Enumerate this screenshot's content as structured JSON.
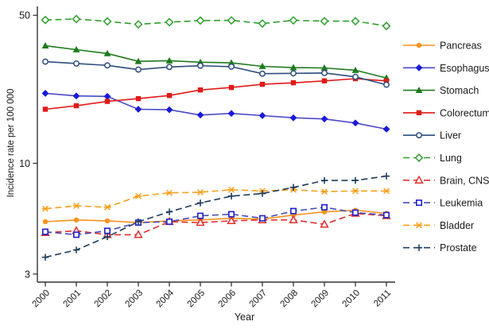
{
  "chart_data": {
    "type": "line",
    "title": "",
    "xlabel": "Year",
    "ylabel": "Incidence rate per 100 000",
    "yscale": "log",
    "ylim": [
      2.9,
      52
    ],
    "y_ticks": [
      "50",
      "10",
      "3"
    ],
    "x": [
      2000,
      2001,
      2002,
      2003,
      2004,
      2005,
      2006,
      2007,
      2008,
      2009,
      2010,
      2011
    ],
    "x_tick_labels": [
      "2000",
      "2001",
      "2002",
      "2003",
      "2004",
      "2005",
      "2006",
      "2007",
      "2008",
      "2009",
      "2010",
      "2011"
    ],
    "grid": false,
    "legend_position": "right",
    "series": [
      {
        "name": "Pancreas",
        "color": "#F6921E",
        "line": "solid",
        "marker": "circle",
        "values": [
          5.3,
          5.4,
          5.35,
          5.25,
          5.35,
          5.4,
          5.5,
          5.45,
          5.7,
          5.9,
          6.0,
          5.8
        ]
      },
      {
        "name": "Esophagus",
        "color": "#4A4AC8",
        "marker_color": "#1A1AD8",
        "line": "solid",
        "marker": "diamond",
        "values": [
          21.4,
          20.8,
          20.7,
          18.0,
          17.9,
          16.9,
          17.2,
          16.8,
          16.4,
          16.2,
          15.5,
          14.5
        ]
      },
      {
        "name": "Stomach",
        "color": "#1E7B1E",
        "line": "solid",
        "marker": "triangle",
        "values": [
          35.9,
          34.4,
          33.0,
          30.3,
          30.5,
          30.0,
          29.8,
          28.7,
          28.3,
          28.2,
          27.5,
          25.3
        ]
      },
      {
        "name": "Colorectum",
        "color": "#E01A1A",
        "line": "solid",
        "marker": "square",
        "values": [
          18.0,
          18.7,
          19.6,
          20.2,
          20.9,
          22.2,
          22.8,
          23.6,
          24.0,
          24.5,
          25.1,
          24.5
        ]
      },
      {
        "name": "Liver",
        "color": "#2E4E7E",
        "line": "solid",
        "marker": "circle-open",
        "values": [
          30.2,
          29.6,
          29.0,
          27.7,
          28.5,
          28.9,
          28.6,
          26.5,
          26.6,
          26.7,
          25.6,
          23.5
        ]
      },
      {
        "name": "Lung",
        "color": "#2F9E2F",
        "line": "dashed",
        "marker": "diamond-open",
        "values": [
          47.5,
          48.0,
          46.8,
          45.3,
          46.4,
          47.2,
          47.3,
          45.7,
          47.3,
          46.9,
          46.9,
          44.5
        ]
      },
      {
        "name": "Brain, CNS",
        "color": "#E03030",
        "line": "dashed",
        "marker": "triangle-open",
        "values": [
          4.7,
          4.8,
          4.6,
          4.6,
          5.3,
          5.25,
          5.35,
          5.4,
          5.4,
          5.15,
          5.8,
          5.65
        ]
      },
      {
        "name": "Leukemia",
        "color": "#4A4AB8",
        "marker_color": "#2020CC",
        "line": "dashed",
        "marker": "square-open",
        "values": [
          4.75,
          4.6,
          4.8,
          5.25,
          5.3,
          5.65,
          5.75,
          5.5,
          5.95,
          6.2,
          5.85,
          5.7
        ]
      },
      {
        "name": "Bladder",
        "color": "#F8A01E",
        "line": "dashed",
        "marker": "asterisk",
        "values": [
          6.1,
          6.3,
          6.2,
          7.0,
          7.25,
          7.3,
          7.5,
          7.4,
          7.5,
          7.35,
          7.4,
          7.4
        ]
      },
      {
        "name": "Prostate",
        "color": "#1E3D5C",
        "line": "dashed",
        "marker": "plus",
        "values": [
          3.6,
          3.9,
          4.5,
          5.3,
          5.9,
          6.5,
          7.0,
          7.2,
          7.7,
          8.3,
          8.3,
          8.7
        ]
      }
    ]
  },
  "style": {
    "axis_color": "#333333",
    "text_color": "#1a1a1a"
  }
}
